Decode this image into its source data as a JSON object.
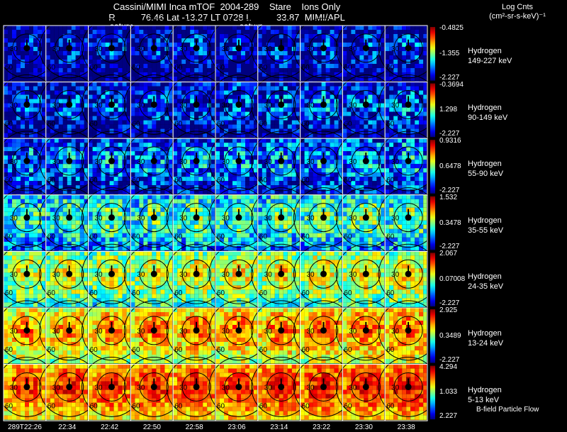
{
  "header": {
    "title_line1": "Cassini/MIMI Inca mTOF  2004-289    Stare    Ions Only",
    "title_line2": "R          76.46 Lat -13.27 LT 0728 L          33.87  MIMI/APL",
    "saturn_label": "saturn",
    "units_line1": "Log Cnts",
    "units_line2": "(cm²-sr-s-keV)⁻¹"
  },
  "chart_data": {
    "type": "heatmap",
    "title": "Cassini/MIMI Inca mTOF 2004-289 Stare Ions Only",
    "time_labels": [
      "289T22:26",
      "22:34",
      "22:42",
      "22:50",
      "22:58",
      "23:06",
      "23:14",
      "23:22",
      "23:30",
      "23:38"
    ],
    "contour_labels": [
      "30",
      "60"
    ],
    "flow_label": "B-field Particle Flow",
    "bands": [
      {
        "species": "Hydrogen",
        "energy": "149-227 keV",
        "cmax": "-0.4825",
        "cmid": "-1.355",
        "cmin": "-2.227",
        "intensity": 0.15
      },
      {
        "species": "Hydrogen",
        "energy": "90-149 keV",
        "cmax": "-0.3694",
        "cmid": "1.298",
        "cmin": "-2.227",
        "intensity": 0.22
      },
      {
        "species": "Hydrogen",
        "energy": "55-90 keV",
        "cmax": "0.9316",
        "cmid": "0.6478",
        "cmin": "-2.227",
        "intensity": 0.32
      },
      {
        "species": "Hydrogen",
        "energy": "35-55 keV",
        "cmax": "1.532",
        "cmid": "0.3478",
        "cmin": "-2.227",
        "intensity": 0.5
      },
      {
        "species": "Hydrogen",
        "energy": "24-35 keV",
        "cmax": "2.067",
        "cmid": "0.07008",
        "cmin": "-2.227",
        "intensity": 0.65
      },
      {
        "species": "Hydrogen",
        "energy": "13-24 keV",
        "cmax": "2.925",
        "cmid": "0.3489",
        "cmin": "-2.227",
        "intensity": 0.78
      },
      {
        "species": "Hydrogen",
        "energy": "5-13 keV",
        "cmax": "4.294",
        "cmid": "1.033",
        "cmin": "2.227",
        "intensity": 0.88
      }
    ]
  }
}
